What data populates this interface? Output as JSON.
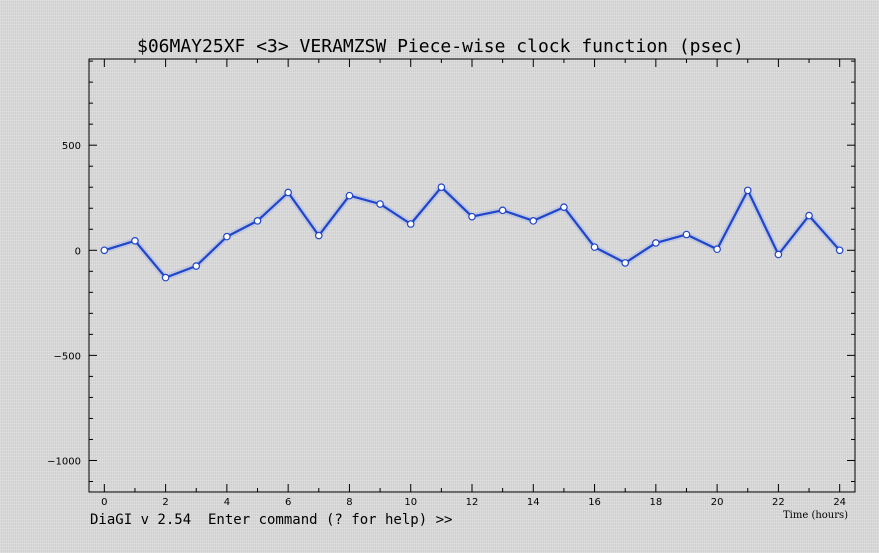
{
  "chart_data": {
    "type": "line",
    "title": "$06MAY25XF <3>  VERAMZSW  Piece-wise clock function (psec)",
    "xlabel": "Time (hours)",
    "ylabel": "",
    "x": [
      0,
      1,
      2,
      3,
      4,
      5,
      6,
      7,
      8,
      9,
      10,
      11,
      12,
      13,
      14,
      15,
      16,
      17,
      18,
      19,
      20,
      21,
      22,
      23,
      24
    ],
    "series": [
      {
        "values": [
          0,
          45,
          -130,
          -75,
          65,
          140,
          275,
          70,
          260,
          220,
          125,
          300,
          160,
          190,
          140,
          205,
          15,
          -60,
          35,
          75,
          5,
          285,
          -20,
          165,
          0
        ]
      }
    ],
    "xlim": [
      -0.5,
      24.5
    ],
    "ylim": [
      -1150,
      910
    ],
    "xticks": [
      0,
      2,
      4,
      6,
      8,
      10,
      12,
      14,
      16,
      18,
      20,
      22,
      24
    ],
    "xtick_labels": [
      "0",
      "2",
      "4",
      "6",
      "8",
      "10",
      "12",
      "14",
      "16",
      "18",
      "20",
      "22",
      "24"
    ],
    "yticks": [
      500,
      0,
      -500,
      -1000
    ],
    "ytick_labels": [
      "500",
      "0",
      "−500",
      "−1000"
    ],
    "grid": false,
    "line_color": "#1f45c8"
  },
  "status_line": "DiaGI v 2.54  Enter command (? for help) >>"
}
